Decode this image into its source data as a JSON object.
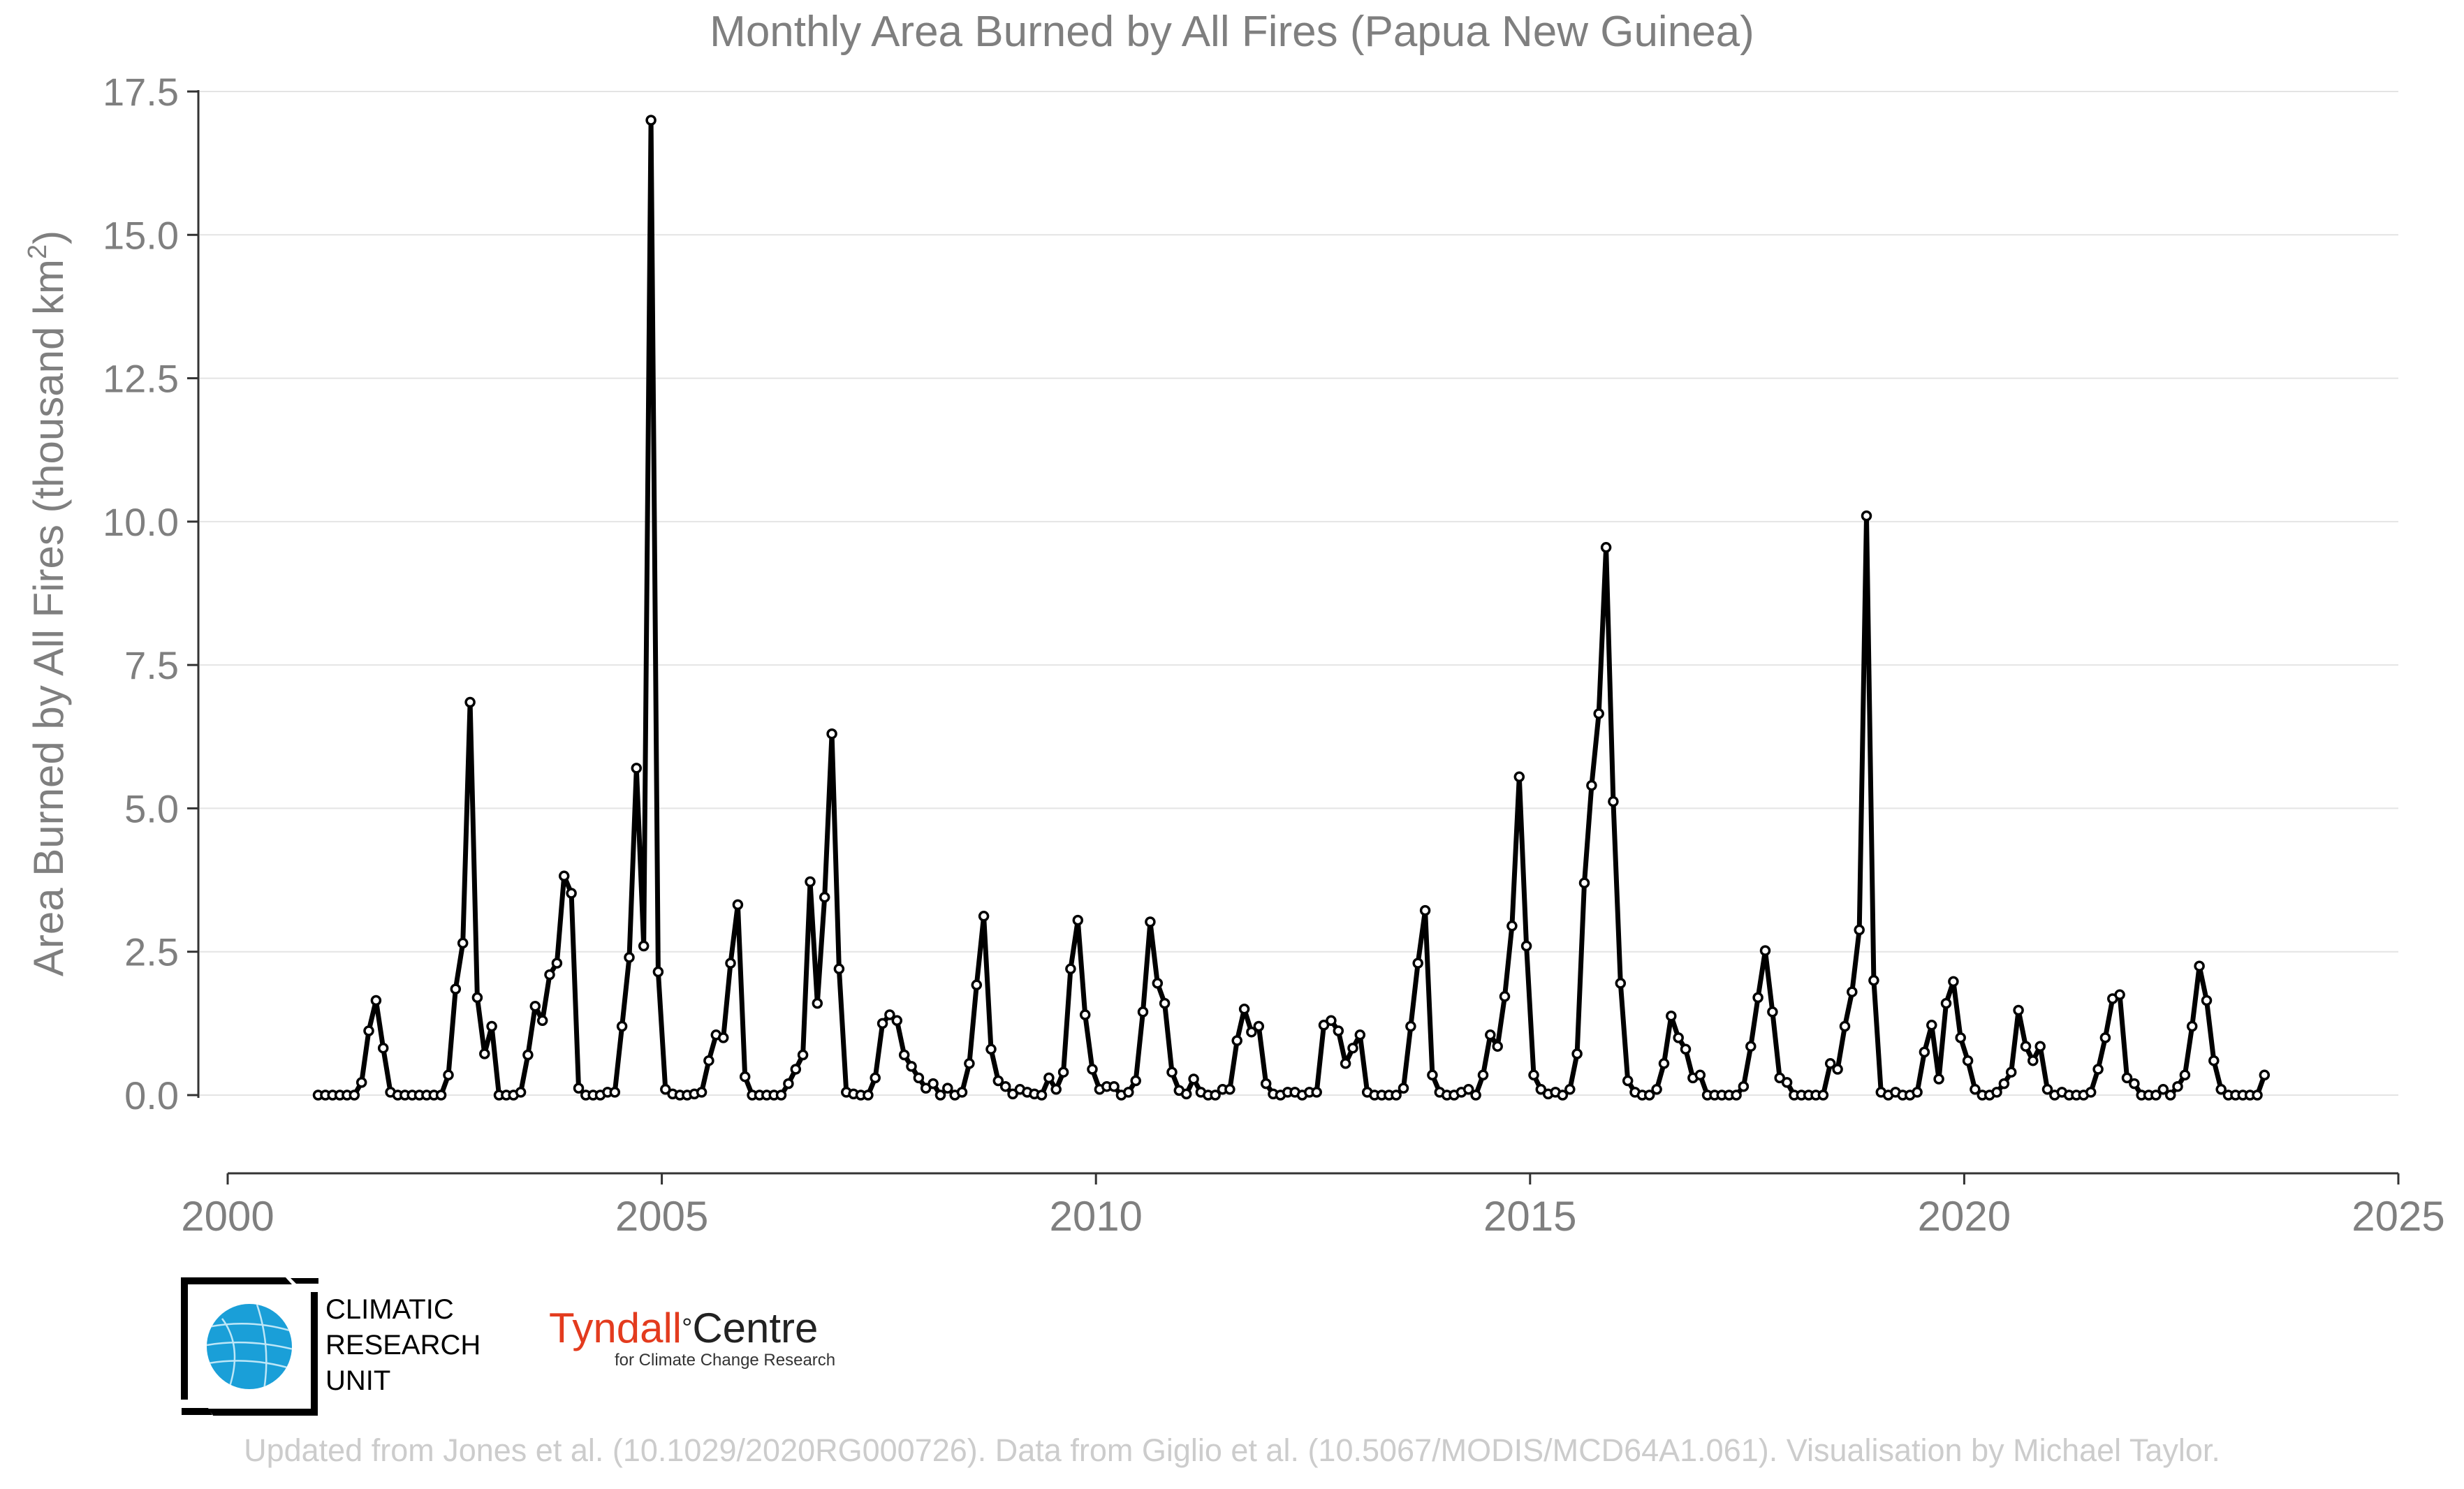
{
  "chart_data": {
    "type": "line",
    "title": "Monthly Area Burned by All Fires (Papua New Guinea)",
    "ylabel": "Area Burned by All Fires (thousand km",
    "ylabel_sup": "2",
    "ylabel_tail": ")",
    "xlabel": "",
    "xlim": [
      2000,
      2025
    ],
    "ylim": [
      -1.375,
      17.5
    ],
    "x_ticks": [
      "2000",
      "2005",
      "2010",
      "2015",
      "2020",
      "2025"
    ],
    "y_ticks": [
      "0.0",
      "2.5",
      "5.0",
      "7.5",
      "10.0",
      "12.5",
      "15.0",
      "17.5"
    ],
    "grid": "horizontal",
    "legend": "none",
    "series": [
      {
        "color": "#000000",
        "start": "2001-01",
        "frequency": "monthly",
        "values": [
          0.0,
          0.0,
          0.0,
          0.0,
          0.0,
          0.0,
          0.22,
          1.12,
          1.65,
          0.82,
          0.05,
          0.0,
          0.0,
          0.0,
          0.0,
          0.0,
          0.0,
          0.0,
          0.35,
          1.85,
          2.65,
          6.85,
          1.7,
          0.72,
          1.2,
          0.0,
          0.0,
          0.0,
          0.05,
          0.7,
          1.55,
          1.3,
          2.1,
          2.3,
          3.82,
          3.52,
          0.12,
          0.0,
          0.0,
          0.0,
          0.05,
          0.05,
          1.2,
          2.4,
          5.7,
          2.6,
          17.0,
          2.15,
          0.1,
          0.02,
          0.0,
          0.0,
          0.02,
          0.05,
          0.6,
          1.05,
          1.0,
          2.3,
          3.32,
          0.32,
          0.0,
          0.0,
          0.0,
          0.0,
          0.0,
          0.2,
          0.45,
          0.7,
          3.72,
          1.6,
          3.45,
          6.3,
          2.2,
          0.05,
          0.02,
          0.0,
          0.0,
          0.3,
          1.25,
          1.4,
          1.3,
          0.7,
          0.5,
          0.3,
          0.12,
          0.2,
          0.0,
          0.12,
          0.0,
          0.05,
          0.55,
          1.92,
          3.12,
          0.8,
          0.25,
          0.15,
          0.02,
          0.1,
          0.05,
          0.02,
          0.0,
          0.3,
          0.1,
          0.4,
          2.2,
          3.05,
          1.4,
          0.45,
          0.1,
          0.15,
          0.15,
          0.0,
          0.05,
          0.25,
          1.45,
          3.02,
          1.95,
          1.6,
          0.4,
          0.08,
          0.02,
          0.28,
          0.05,
          0.0,
          0.0,
          0.1,
          0.1,
          0.95,
          1.5,
          1.1,
          1.2,
          0.2,
          0.02,
          0.0,
          0.05,
          0.05,
          0.0,
          0.05,
          0.05,
          1.22,
          1.3,
          1.12,
          0.55,
          0.82,
          1.05,
          0.05,
          0.0,
          0.0,
          0.0,
          0.0,
          0.12,
          1.2,
          2.3,
          3.22,
          0.35,
          0.05,
          0.0,
          0.0,
          0.05,
          0.1,
          0.0,
          0.35,
          1.05,
          0.85,
          1.72,
          2.95,
          5.55,
          2.6,
          0.35,
          0.1,
          0.02,
          0.05,
          0.0,
          0.1,
          0.72,
          3.7,
          5.4,
          6.65,
          9.55,
          5.12,
          1.95,
          0.25,
          0.05,
          0.0,
          0.0,
          0.1,
          0.55,
          1.38,
          1.0,
          0.8,
          0.3,
          0.35,
          0.0,
          0.0,
          0.0,
          0.0,
          0.0,
          0.15,
          0.85,
          1.7,
          2.52,
          1.45,
          0.3,
          0.22,
          0.0,
          0.0,
          0.0,
          0.0,
          0.0,
          0.55,
          0.45,
          1.2,
          1.8,
          2.88,
          10.1,
          2.0,
          0.05,
          0.0,
          0.05,
          0.0,
          0.0,
          0.05,
          0.75,
          1.22,
          0.28,
          1.6,
          1.98,
          1.0,
          0.6,
          0.1,
          0.0,
          0.0,
          0.05,
          0.2,
          0.4,
          1.48,
          0.85,
          0.6,
          0.85,
          0.1,
          0.0,
          0.05,
          0.0,
          0.0,
          0.0,
          0.05,
          0.45,
          1.0,
          1.68,
          1.75,
          0.3,
          0.2,
          0.0,
          0.0,
          0.0,
          0.1,
          0.0,
          0.15,
          0.35,
          1.2,
          2.25,
          1.65,
          0.6,
          0.1,
          0.0,
          0.0,
          0.0,
          0.0,
          0.0,
          0.35
        ]
      }
    ]
  },
  "logos": {
    "cru_lines": [
      "CLIMATIC",
      "RESEARCH",
      "UNIT"
    ],
    "tyndall_name": "Tyndall",
    "tyndall_degree": "°",
    "tyndall_centre": "Centre",
    "tyndall_sub": "for Climate Change Research"
  },
  "credit": "Updated from Jones et al. (10.1029/2020RG000726). Data from Giglio et al. (10.5067/MODIS/MCD64A1.061). Visualisation by Michael Taylor."
}
